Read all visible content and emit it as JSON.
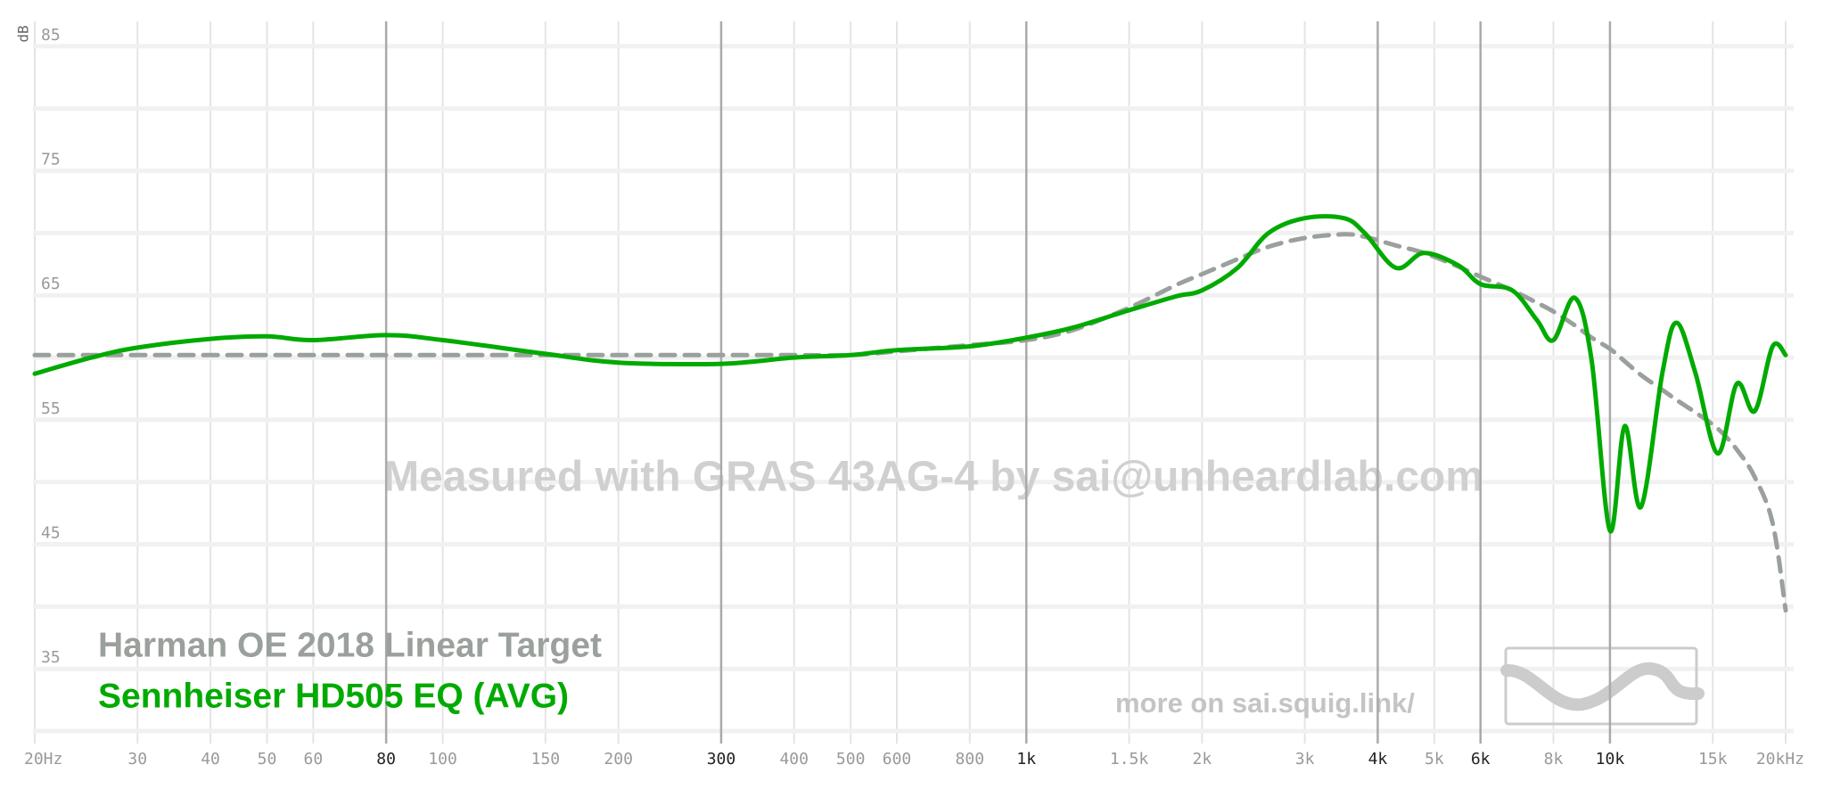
{
  "chart_data": {
    "type": "line",
    "x_scale": "log",
    "y_label": "dB",
    "watermark": "Measured with GRAS 43AG-4 by sai@unheardlab.com",
    "annotation": "more on sai.squig.link/",
    "x": [
      20,
      25,
      30,
      40,
      50,
      60,
      80,
      100,
      150,
      200,
      300,
      400,
      500,
      600,
      800,
      1000,
      1200,
      1500,
      1800,
      2000,
      2300,
      2600,
      3000,
      3500,
      3800,
      4300,
      4800,
      5500,
      6000,
      6800,
      7500,
      8000,
      8700,
      9300,
      10000,
      10600,
      11300,
      12300,
      13000,
      14000,
      15300,
      16500,
      17700,
      19000,
      20000
    ],
    "series": [
      {
        "name": "Harman OE 2018 Linear Target",
        "color": "#9aa09c",
        "dash": true,
        "values": [
          60.2,
          60.2,
          60.2,
          60.2,
          60.2,
          60.2,
          60.2,
          60.2,
          60.2,
          60.2,
          60.2,
          60.2,
          60.2,
          60.5,
          61.0,
          61.4,
          62.2,
          64.0,
          65.8,
          66.7,
          67.9,
          68.9,
          69.6,
          69.9,
          69.7,
          69.0,
          68.4,
          67.3,
          66.5,
          65.4,
          64.4,
          63.7,
          62.6,
          61.6,
          60.7,
          59.7,
          58.6,
          57.4,
          56.6,
          55.6,
          54.3,
          52.6,
          50.4,
          46.7,
          39.7
        ]
      },
      {
        "name": "Sennheiser HD505 EQ (AVG)",
        "color": "#00aa00",
        "dash": false,
        "values": [
          58.7,
          60.0,
          60.8,
          61.5,
          61.7,
          61.4,
          61.8,
          61.4,
          60.3,
          59.6,
          59.5,
          60.0,
          60.2,
          60.6,
          60.9,
          61.6,
          62.4,
          63.8,
          64.9,
          65.4,
          67.2,
          70.0,
          71.2,
          71.2,
          70.0,
          67.2,
          68.4,
          67.4,
          65.9,
          65.4,
          63.0,
          61.4,
          64.8,
          59.8,
          46.1,
          54.5,
          48.0,
          58.8,
          62.8,
          58.8,
          52.3,
          57.9,
          55.7,
          60.9,
          60.2
        ]
      }
    ],
    "xlim": [
      20,
      20000
    ],
    "ylim": [
      29,
      87
    ],
    "xticks": [
      {
        "value": 20,
        "label": "20Hz"
      },
      30,
      40,
      50,
      60,
      80,
      100,
      150,
      200,
      300,
      400,
      500,
      600,
      800,
      {
        "value": 1000,
        "label": "1k"
      },
      {
        "value": 1500,
        "label": "1.5k"
      },
      {
        "value": 2000,
        "label": "2k"
      },
      {
        "value": 3000,
        "label": "3k"
      },
      {
        "value": 4000,
        "label": "4k"
      },
      {
        "value": 5000,
        "label": "5k"
      },
      {
        "value": 6000,
        "label": "6k"
      },
      {
        "value": 8000,
        "label": "8k"
      },
      {
        "value": 10000,
        "label": "10k"
      },
      {
        "value": 15000,
        "label": "15k"
      },
      {
        "value": 20000,
        "label": "20kHz"
      }
    ],
    "x_major_ticks": [
      80,
      300,
      1000,
      4000,
      6000,
      10000
    ],
    "yticks": [
      85,
      75,
      65,
      55,
      45,
      35
    ],
    "y_minor_ticks": [
      80,
      70,
      60,
      50,
      40,
      30
    ],
    "grid": true
  }
}
